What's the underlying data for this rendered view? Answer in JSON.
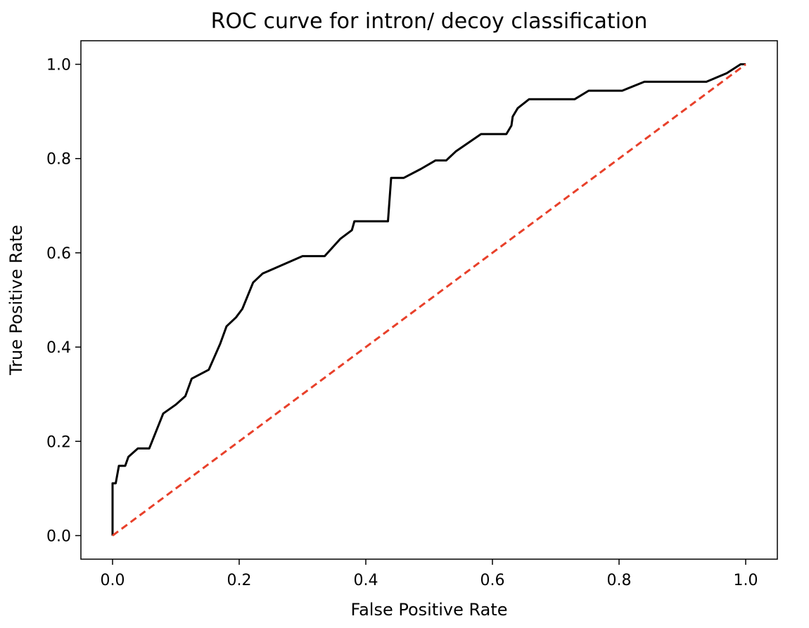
{
  "chart_data": {
    "type": "line",
    "title": "ROC curve for intron/ decoy classification",
    "xlabel": "False Positive Rate",
    "ylabel": "True Positive Rate",
    "xlim": [
      -0.05,
      1.05
    ],
    "ylim": [
      -0.05,
      1.05
    ],
    "xticks": [
      "0.0",
      "0.2",
      "0.4",
      "0.6",
      "0.8",
      "1.0"
    ],
    "yticks": [
      "0.0",
      "0.2",
      "0.4",
      "0.6",
      "0.8",
      "1.0"
    ],
    "grid": false,
    "series": [
      {
        "color": "#000000",
        "style": "solid",
        "x": [
          0.0,
          0.0,
          0.005,
          0.005,
          0.01,
          0.01,
          0.02,
          0.02,
          0.025,
          0.04,
          0.058,
          0.08,
          0.1,
          0.115,
          0.125,
          0.152,
          0.17,
          0.18,
          0.195,
          0.205,
          0.222,
          0.237,
          0.3,
          0.335,
          0.36,
          0.378,
          0.382,
          0.435,
          0.44,
          0.46,
          0.487,
          0.51,
          0.527,
          0.542,
          0.582,
          0.622,
          0.63,
          0.632,
          0.64,
          0.658,
          0.73,
          0.752,
          0.805,
          0.84,
          0.938,
          0.97,
          0.992,
          1.0
        ],
        "y": [
          0.0,
          0.111,
          0.111,
          0.111,
          0.148,
          0.148,
          0.148,
          0.148,
          0.167,
          0.185,
          0.185,
          0.259,
          0.278,
          0.296,
          0.333,
          0.352,
          0.407,
          0.444,
          0.463,
          0.481,
          0.537,
          0.556,
          0.593,
          0.593,
          0.63,
          0.648,
          0.667,
          0.667,
          0.759,
          0.759,
          0.778,
          0.796,
          0.796,
          0.815,
          0.852,
          0.852,
          0.87,
          0.889,
          0.907,
          0.926,
          0.926,
          0.944,
          0.944,
          0.963,
          0.963,
          0.981,
          1.0,
          1.0
        ]
      },
      {
        "color": "#e8402a",
        "style": "dashed",
        "x": [
          0.0,
          1.0
        ],
        "y": [
          0.0,
          1.0
        ]
      }
    ]
  }
}
